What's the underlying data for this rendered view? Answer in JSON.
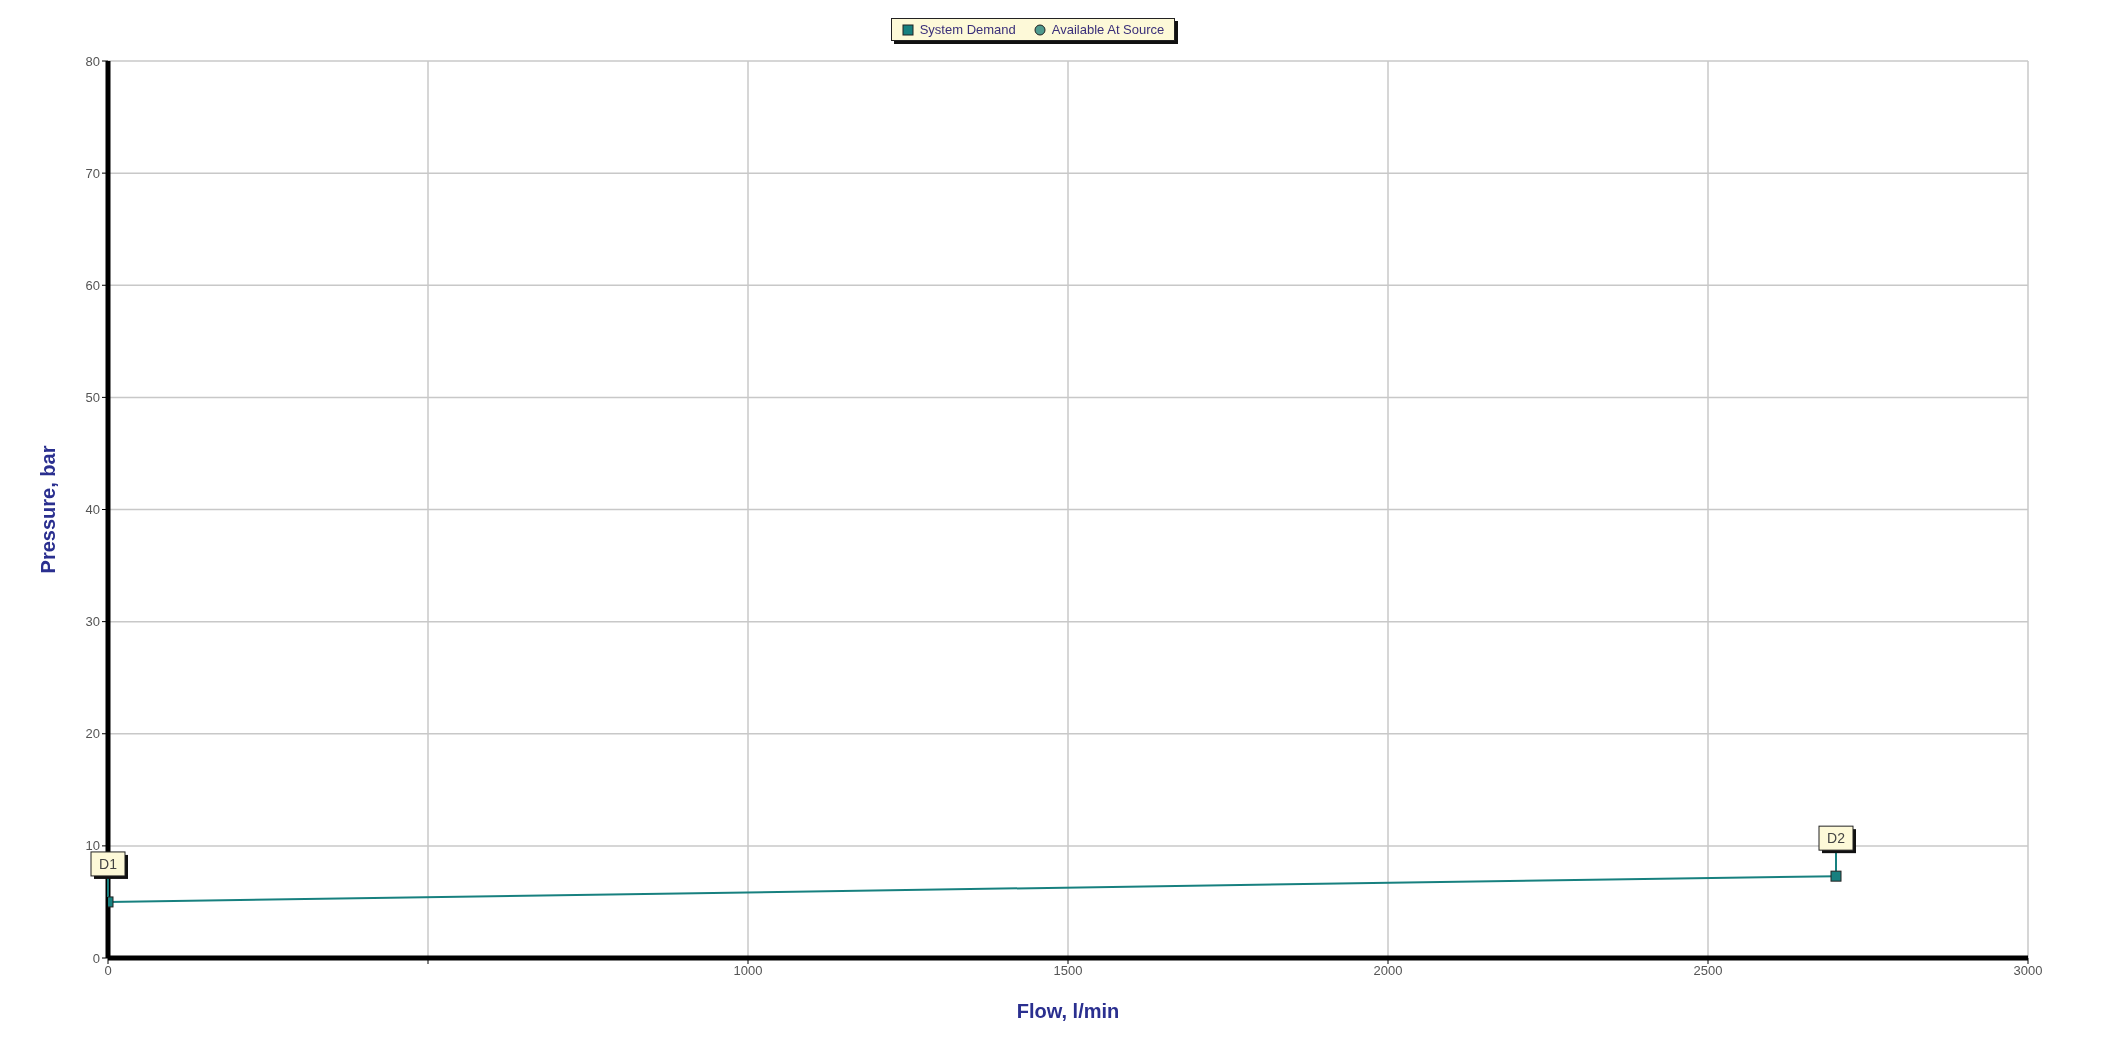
{
  "chart_data": {
    "type": "line",
    "xlabel": "Flow, l/min",
    "ylabel": "Pressure, bar",
    "x": [
      0,
      2700
    ],
    "series": [
      {
        "name": "System Demand",
        "color": "#17807f",
        "marker": "square",
        "values": [
          5,
          7.3
        ]
      },
      {
        "name": "Available At Source",
        "color": "#4f9a8e",
        "marker": "circle",
        "values": [
          null,
          null
        ]
      }
    ],
    "xlim": [
      0,
      3000
    ],
    "xticks": [
      0,
      {
        "value": 500,
        "label": null
      },
      1000,
      1500,
      2000,
      2500,
      3000
    ],
    "ylim": [
      0,
      80
    ],
    "yticks": [
      0,
      10,
      20,
      30,
      40,
      50,
      60,
      70,
      80
    ],
    "annotations": [
      {
        "text": "D1",
        "x": 0,
        "y": 5
      },
      {
        "text": "D2",
        "x": 2700,
        "y": 7.3
      }
    ],
    "grid": true,
    "legend": "top",
    "line_style": "solid"
  }
}
